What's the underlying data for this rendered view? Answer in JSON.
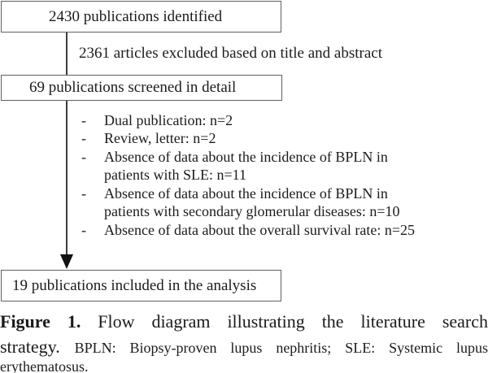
{
  "figure": {
    "boxes": {
      "identified": "2430 publications identified",
      "screened": "69 publications screened in detail",
      "included": "19 publications included in the analysis"
    },
    "exclusion_note": "2361 articles excluded based on title and abstract",
    "exclusions": {
      "lines": [
        {
          "bullet": "-",
          "text": "Dual publication: n=2"
        },
        {
          "bullet": "-",
          "text": "Review, letter: n=2"
        },
        {
          "bullet": "-",
          "text": "Absence of data about the incidence of BPLN in"
        },
        {
          "bullet": "",
          "text": "patients with SLE: n=11"
        },
        {
          "bullet": "-",
          "text": "Absence of data about the incidence of BPLN in"
        },
        {
          "bullet": "",
          "text": "patients with secondary glomerular diseases: n=10"
        },
        {
          "bullet": "-",
          "text": "Absence of data about the overall survival rate: n=25"
        }
      ]
    }
  },
  "caption": {
    "label": "Figure 1.",
    "title_line1": "Flow diagram illustrating the literature search",
    "title_line2": "strategy.",
    "abbrev_line2": "BPLN: Biopsy-proven lupus nephritis; SLE: Systemic lupus",
    "abbrev_line3": "erythematosus."
  },
  "colors": {
    "background": "#ffffff",
    "box_border": "#606060",
    "connector": "#3c3c3c",
    "text": "#1b1b1b"
  }
}
